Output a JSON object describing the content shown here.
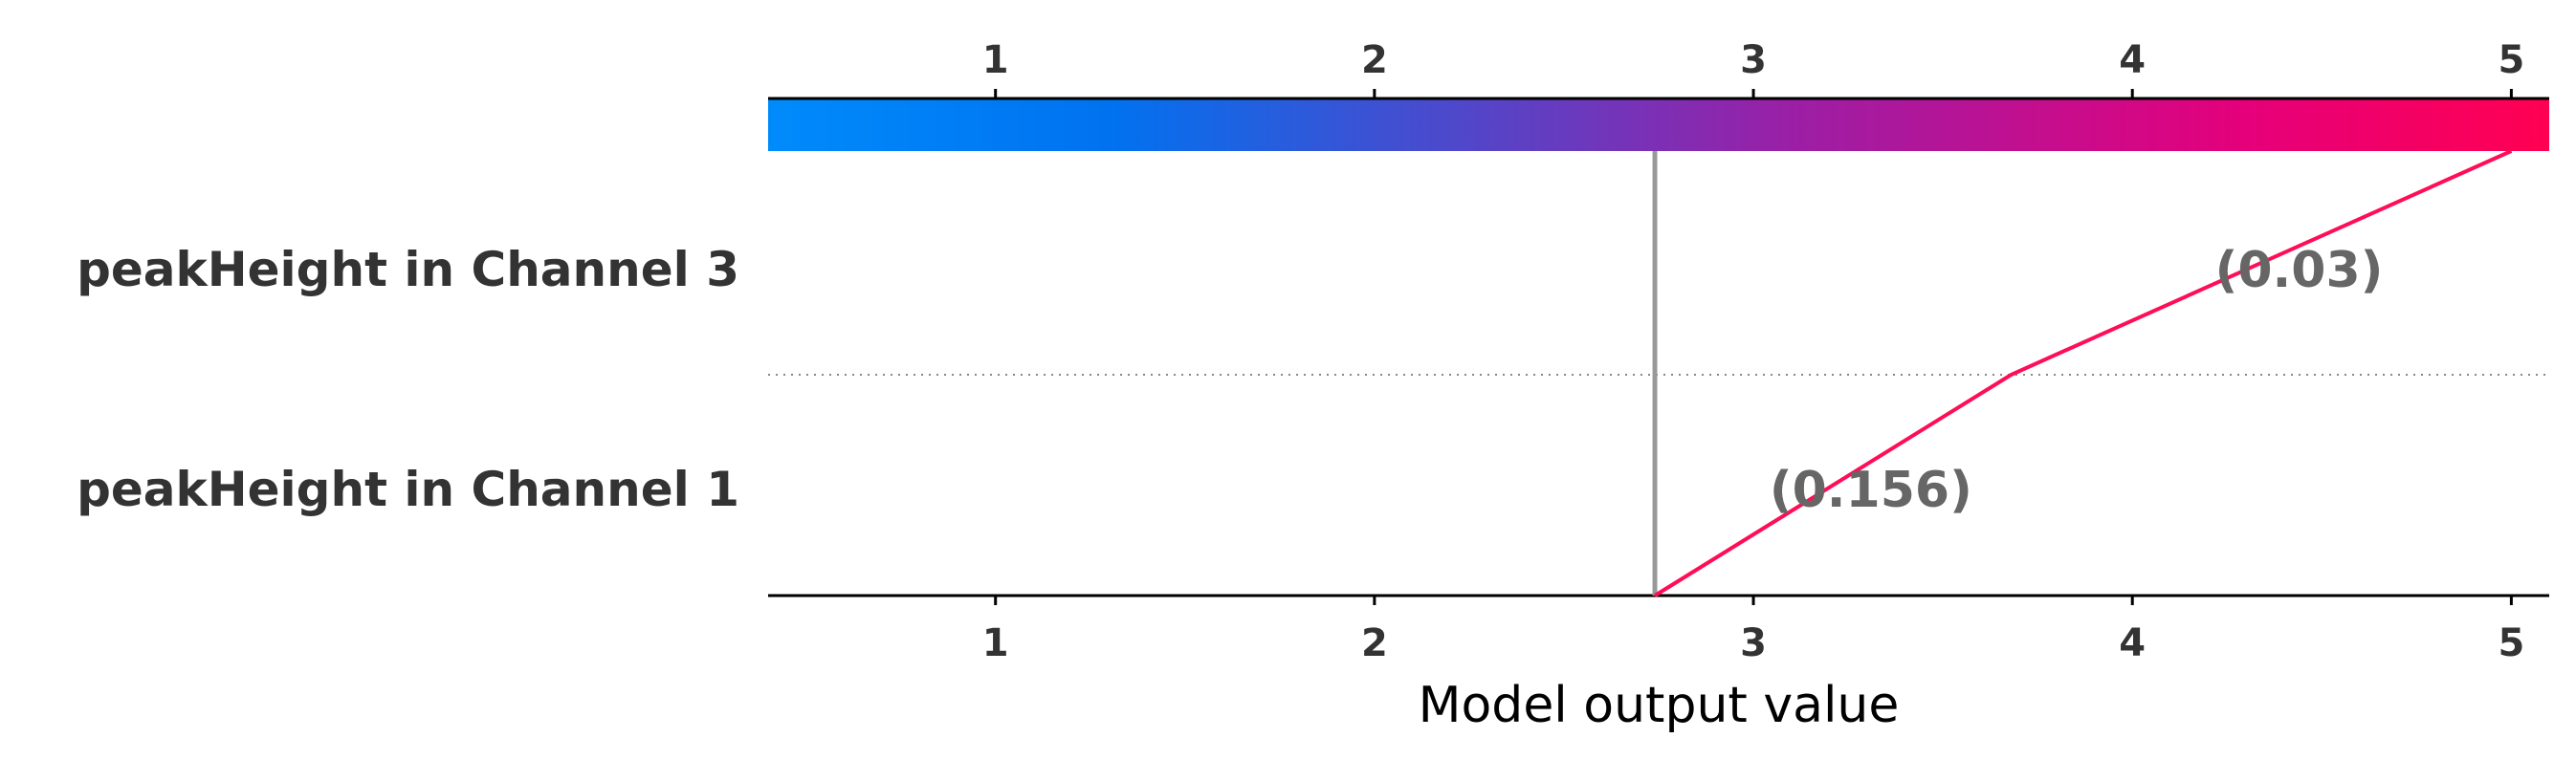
{
  "chart_data": {
    "type": "line",
    "xlabel": "Model output value",
    "xlim": [
      0.4,
      5.1
    ],
    "ticks": [
      1,
      2,
      3,
      4,
      5
    ],
    "tick_labels": [
      "1",
      "2",
      "3",
      "4",
      "5"
    ],
    "base_value": 2.74,
    "features": [
      {
        "name": "peakHeight in Channel 1",
        "label": "(0.156)",
        "start": 2.74,
        "end": 3.68
      },
      {
        "name": "peakHeight in Channel 3",
        "label": "(0.03)",
        "start": 3.68,
        "end": 5.0
      }
    ],
    "path_points": [
      {
        "x": 2.74,
        "y": 0
      },
      {
        "x": 3.68,
        "y": 1
      },
      {
        "x": 5.0,
        "y": 2
      }
    ],
    "colorbar": {
      "range": [
        0.4,
        5.1
      ],
      "stops": [
        {
          "value": 0.4,
          "color": "#008bfb"
        },
        {
          "value": 1.3,
          "color": "#0072f0"
        },
        {
          "value": 3.1,
          "color": "#9b1fa6"
        },
        {
          "value": 4.3,
          "color": "#e5007a"
        },
        {
          "value": 5.1,
          "color": "#ff0052"
        }
      ]
    },
    "colors": {
      "path_line": "#ff0d57",
      "base_line": "#999999",
      "axis": "#000000",
      "separator": "#888888"
    },
    "grid": false,
    "legend": "none"
  }
}
